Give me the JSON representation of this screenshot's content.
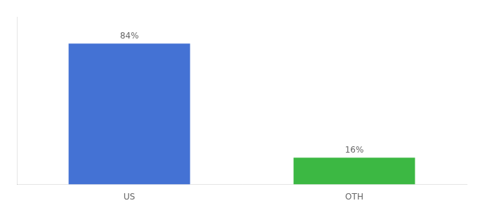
{
  "chart_data": {
    "type": "bar",
    "categories": [
      "US",
      "OTH"
    ],
    "values": [
      84,
      16
    ],
    "value_labels": [
      "84%",
      "16%"
    ],
    "colors": [
      "#4472d4",
      "#3cb843"
    ],
    "ylim": [
      0,
      100
    ],
    "data_labels": true,
    "tick_labels": "x",
    "grid": false
  }
}
